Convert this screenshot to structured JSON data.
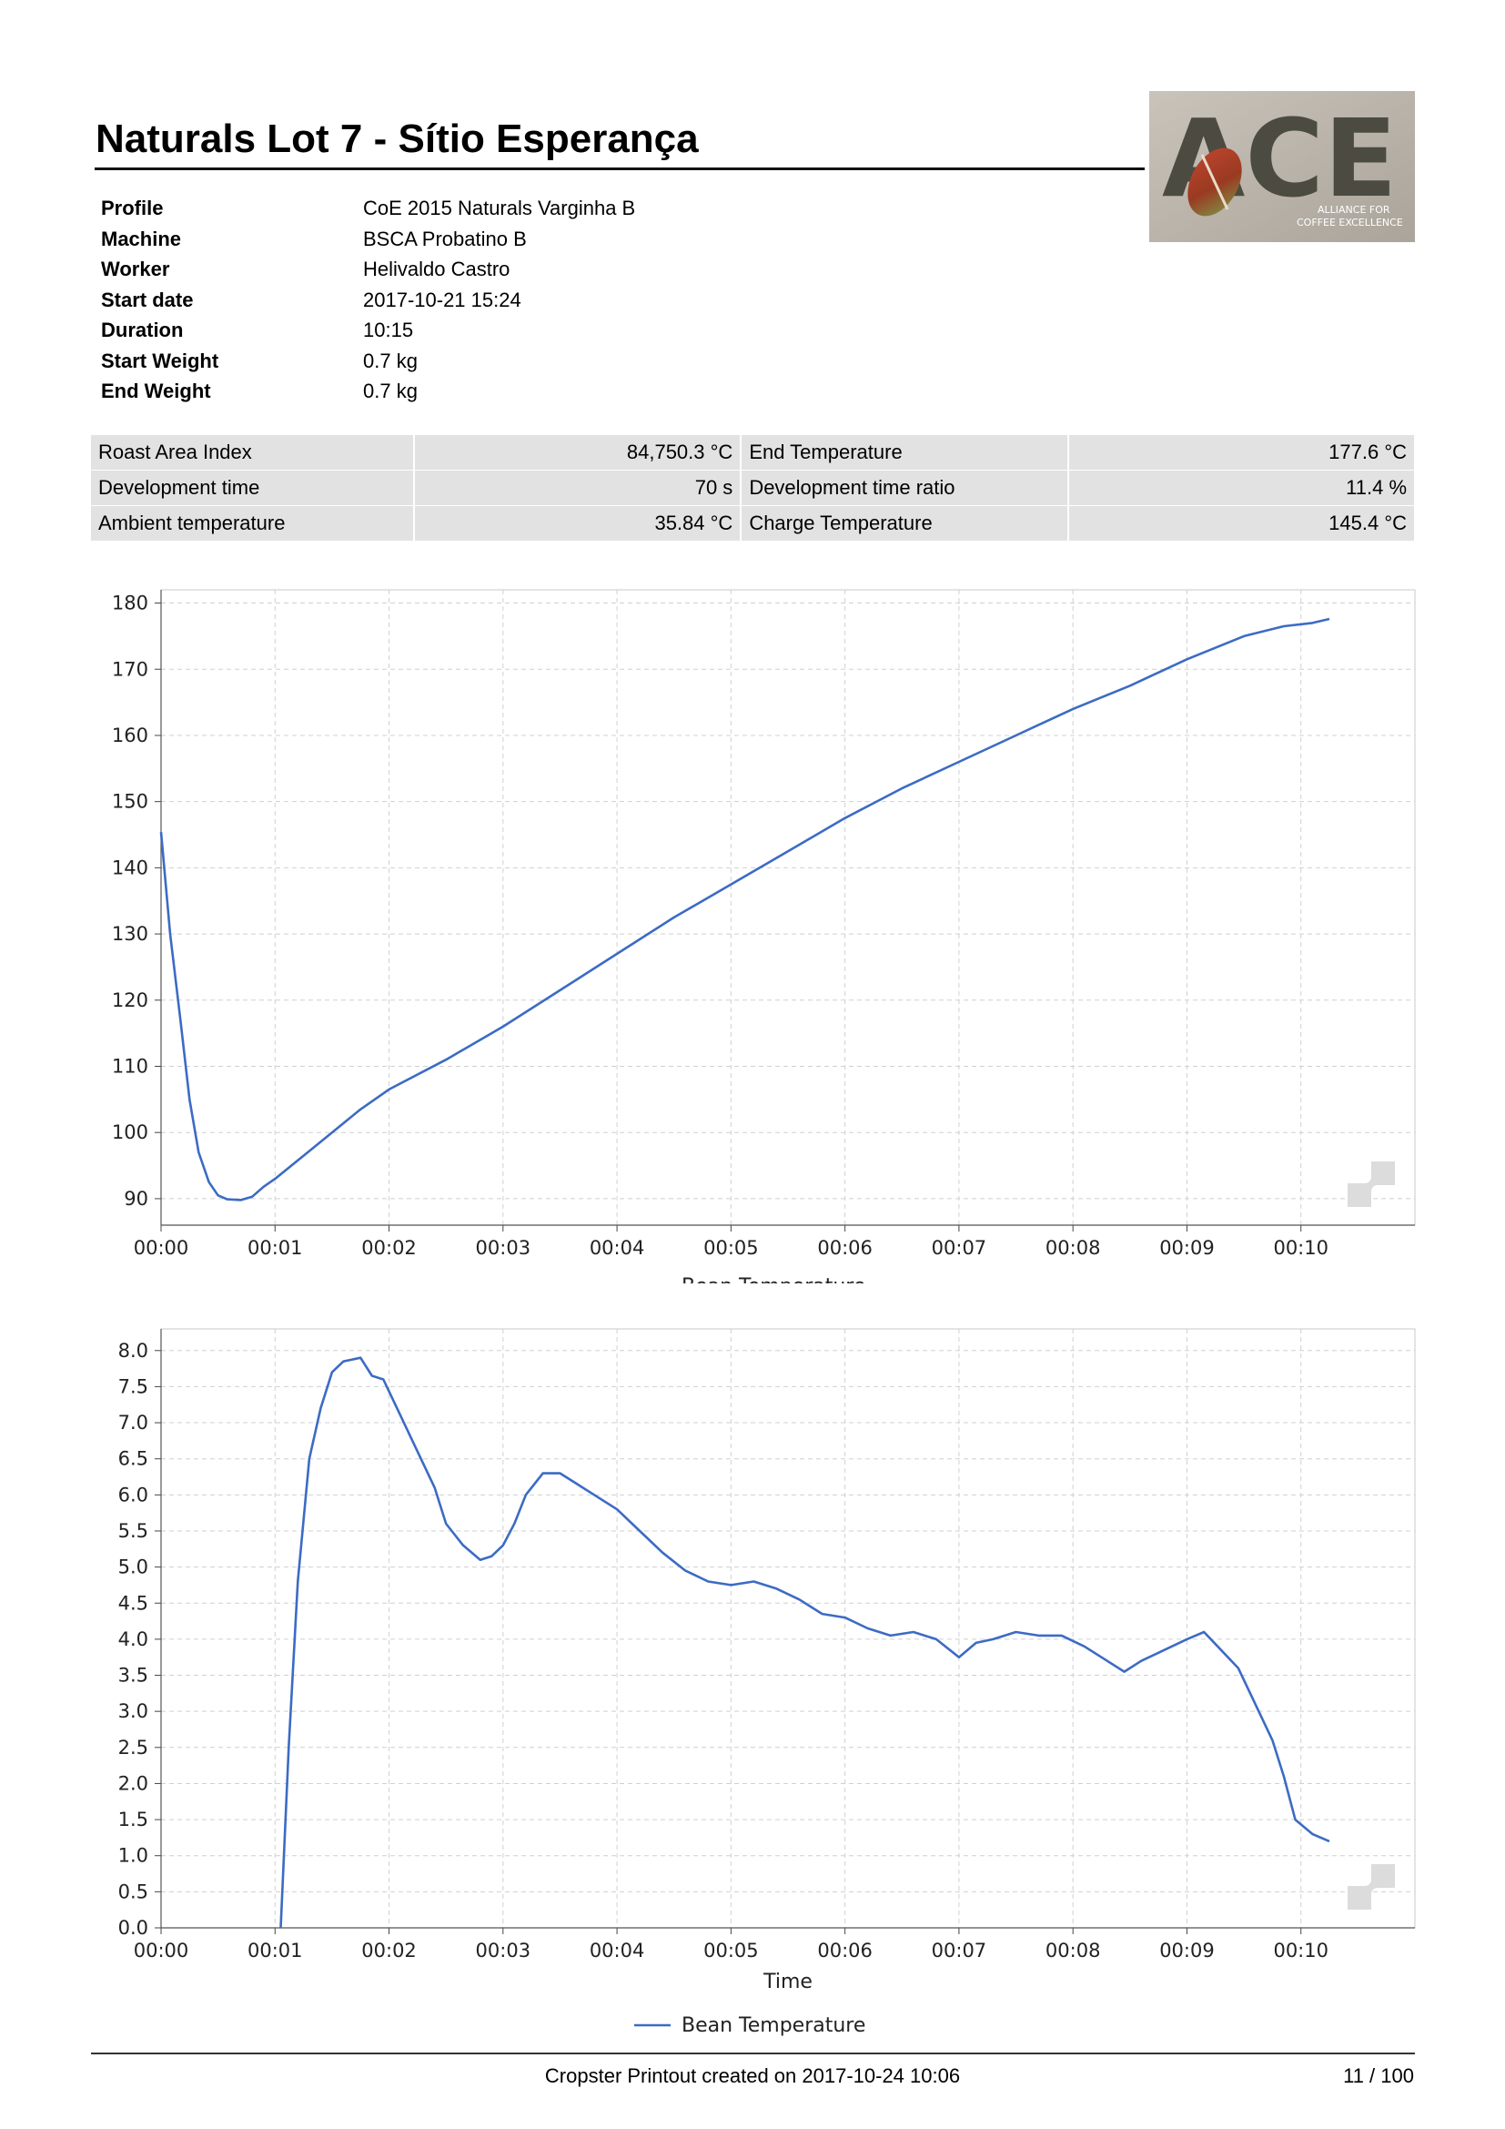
{
  "report": {
    "title": "Naturals Lot 7 - Sítio Esperança"
  },
  "logo": {
    "text": "ACE",
    "subtitle_line1": "ALLIANCE FOR",
    "subtitle_line2": "COFFEE EXCELLENCE"
  },
  "meta": [
    {
      "label": "Profile",
      "value": "CoE 2015 Naturals Varginha B"
    },
    {
      "label": "Machine",
      "value": "BSCA Probatino B"
    },
    {
      "label": "Worker",
      "value": "Helivaldo Castro"
    },
    {
      "label": "Start date",
      "value": "2017-10-21 15:24"
    },
    {
      "label": "Duration",
      "value": "10:15"
    },
    {
      "label": "Start Weight",
      "value": "0.7 kg"
    },
    {
      "label": "End Weight",
      "value": "0.7 kg"
    }
  ],
  "stats": [
    {
      "label1": "Roast Area Index",
      "value1": "84,750.3 °C",
      "label2": "End Temperature",
      "value2": "177.6 °C"
    },
    {
      "label1": "Development time",
      "value1": "70 s",
      "label2": "Development time ratio",
      "value2": "11.4 %"
    },
    {
      "label1": "Ambient temperature",
      "value1": "35.84 °C",
      "label2": "Charge Temperature",
      "value2": "145.4 °C"
    }
  ],
  "chart_data": [
    {
      "type": "line",
      "title": "",
      "xlabel": "",
      "ylabel": "",
      "x_unit": "minutes",
      "xlim": [
        0,
        11
      ],
      "ylim": [
        86,
        182
      ],
      "x_ticks": [
        "00:00",
        "00:01",
        "00:02",
        "00:03",
        "00:04",
        "00:05",
        "00:06",
        "00:07",
        "00:08",
        "00:09",
        "00:10"
      ],
      "y_ticks": [
        "90",
        "100",
        "110",
        "120",
        "130",
        "140",
        "150",
        "160",
        "170",
        "180"
      ],
      "grid": true,
      "legend_position": "bottom",
      "series": [
        {
          "name": "Bean Temperature",
          "color": "#3c6bc4",
          "points": [
            [
              0,
              145.4
            ],
            [
              0.08,
              130
            ],
            [
              0.17,
              117
            ],
            [
              0.25,
              105
            ],
            [
              0.33,
              97
            ],
            [
              0.42,
              92.5
            ],
            [
              0.5,
              90.5
            ],
            [
              0.58,
              89.9
            ],
            [
              0.7,
              89.8
            ],
            [
              0.8,
              90.3
            ],
            [
              0.9,
              91.8
            ],
            [
              1.0,
              93
            ],
            [
              1.25,
              96.5
            ],
            [
              1.5,
              100
            ],
            [
              1.75,
              103.5
            ],
            [
              2.0,
              106.5
            ],
            [
              2.5,
              111
            ],
            [
              3.0,
              116
            ],
            [
              3.5,
              121.5
            ],
            [
              4.0,
              127
            ],
            [
              4.5,
              132.5
            ],
            [
              5.0,
              137.5
            ],
            [
              5.5,
              142.5
            ],
            [
              6.0,
              147.5
            ],
            [
              6.5,
              152
            ],
            [
              7.0,
              156
            ],
            [
              7.5,
              160
            ],
            [
              8.0,
              164
            ],
            [
              8.5,
              167.5
            ],
            [
              9.0,
              171.5
            ],
            [
              9.5,
              175
            ],
            [
              9.85,
              176.5
            ],
            [
              10.1,
              177
            ],
            [
              10.25,
              177.6
            ]
          ]
        }
      ]
    },
    {
      "type": "line",
      "title": "",
      "xlabel": "Time",
      "ylabel": "",
      "x_unit": "minutes",
      "xlim": [
        0,
        11
      ],
      "ylim": [
        0,
        8.3
      ],
      "x_ticks": [
        "00:00",
        "00:01",
        "00:02",
        "00:03",
        "00:04",
        "00:05",
        "00:06",
        "00:07",
        "00:08",
        "00:09",
        "00:10"
      ],
      "y_ticks": [
        "0.0",
        "0.5",
        "1.0",
        "1.5",
        "2.0",
        "2.5",
        "3.0",
        "3.5",
        "4.0",
        "4.5",
        "5.0",
        "5.5",
        "6.0",
        "6.5",
        "7.0",
        "7.5",
        "8.0"
      ],
      "grid": true,
      "legend_position": "bottom",
      "series": [
        {
          "name": "Bean Temperature",
          "color": "#3c6bc4",
          "points": [
            [
              1.05,
              0
            ],
            [
              1.12,
              2.5
            ],
            [
              1.2,
              4.8
            ],
            [
              1.3,
              6.5
            ],
            [
              1.4,
              7.2
            ],
            [
              1.5,
              7.7
            ],
            [
              1.6,
              7.85
            ],
            [
              1.75,
              7.9
            ],
            [
              1.85,
              7.65
            ],
            [
              1.95,
              7.6
            ],
            [
              2.1,
              7.1
            ],
            [
              2.25,
              6.6
            ],
            [
              2.4,
              6.1
            ],
            [
              2.5,
              5.6
            ],
            [
              2.65,
              5.3
            ],
            [
              2.8,
              5.1
            ],
            [
              2.9,
              5.15
            ],
            [
              3.0,
              5.3
            ],
            [
              3.1,
              5.6
            ],
            [
              3.2,
              6.0
            ],
            [
              3.35,
              6.3
            ],
            [
              3.5,
              6.3
            ],
            [
              3.65,
              6.15
            ],
            [
              3.8,
              6.0
            ],
            [
              4.0,
              5.8
            ],
            [
              4.2,
              5.5
            ],
            [
              4.4,
              5.2
            ],
            [
              4.6,
              4.95
            ],
            [
              4.8,
              4.8
            ],
            [
              5.0,
              4.75
            ],
            [
              5.2,
              4.8
            ],
            [
              5.4,
              4.7
            ],
            [
              5.6,
              4.55
            ],
            [
              5.8,
              4.35
            ],
            [
              6.0,
              4.3
            ],
            [
              6.2,
              4.15
            ],
            [
              6.4,
              4.05
            ],
            [
              6.6,
              4.1
            ],
            [
              6.8,
              4.0
            ],
            [
              7.0,
              3.75
            ],
            [
              7.15,
              3.95
            ],
            [
              7.3,
              4.0
            ],
            [
              7.5,
              4.1
            ],
            [
              7.7,
              4.05
            ],
            [
              7.9,
              4.05
            ],
            [
              8.1,
              3.9
            ],
            [
              8.3,
              3.7
            ],
            [
              8.45,
              3.55
            ],
            [
              8.6,
              3.7
            ],
            [
              8.8,
              3.85
            ],
            [
              9.0,
              4.0
            ],
            [
              9.15,
              4.1
            ],
            [
              9.3,
              3.85
            ],
            [
              9.45,
              3.6
            ],
            [
              9.6,
              3.1
            ],
            [
              9.75,
              2.6
            ],
            [
              9.85,
              2.1
            ],
            [
              9.95,
              1.5
            ],
            [
              10.1,
              1.3
            ],
            [
              10.25,
              1.2
            ]
          ]
        }
      ]
    }
  ],
  "footer": {
    "text": "Cropster Printout created on 2017-10-24 10:06",
    "page": "11 / 100"
  }
}
